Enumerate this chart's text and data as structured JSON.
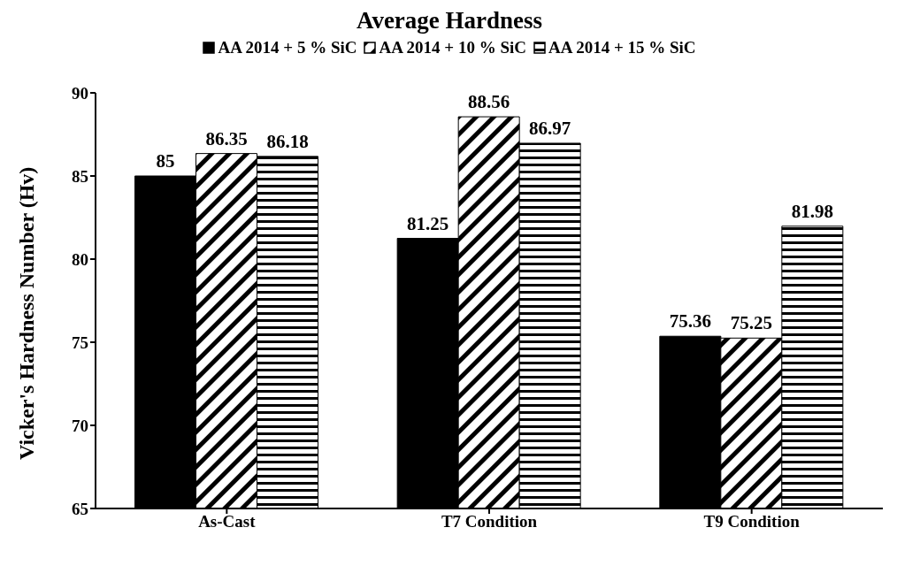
{
  "chart_data": {
    "type": "bar",
    "title": "Average Hardness",
    "ylabel": "Vicker's Hardness Number (Hv)",
    "categories": [
      "As-Cast",
      "T7 Condition",
      "T9 Condition"
    ],
    "series": [
      {
        "name": "AA 2014 + 5 % SiC",
        "color": "#000000",
        "values": [
          85,
          81.25,
          75.36
        ]
      },
      {
        "name": "AA 2014 + 10 % SiC",
        "color": "#000000",
        "values": [
          86.35,
          88.56,
          75.25
        ]
      },
      {
        "name": "AA 2014 + 15 % SiC",
        "color": "#000000",
        "values": [
          86.18,
          86.97,
          81.98
        ]
      }
    ],
    "ylim": [
      65,
      90
    ],
    "yticks": [
      65,
      70,
      75,
      80,
      85,
      90
    ],
    "grid": false,
    "legend": "top",
    "data_labels": true
  }
}
